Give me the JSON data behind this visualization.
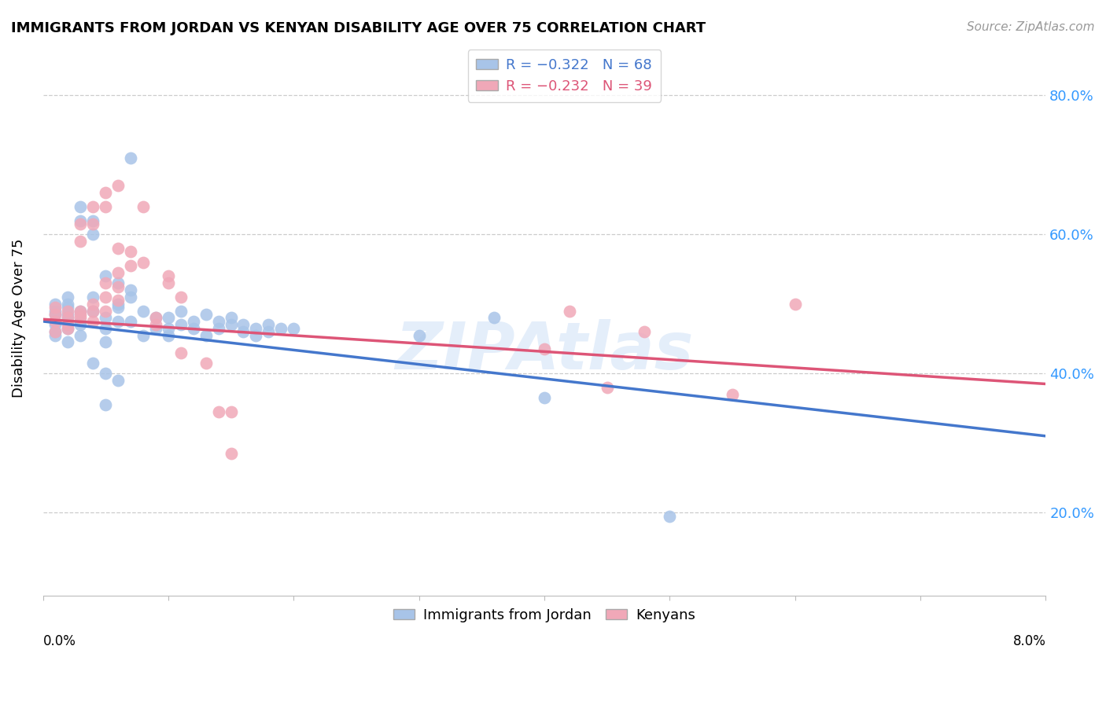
{
  "title": "IMMIGRANTS FROM JORDAN VS KENYAN DISABILITY AGE OVER 75 CORRELATION CHART",
  "source": "Source: ZipAtlas.com",
  "ylabel": "Disability Age Over 75",
  "xlim": [
    0.0,
    0.08
  ],
  "ylim": [
    0.08,
    0.88
  ],
  "yticks": [
    0.2,
    0.4,
    0.6,
    0.8
  ],
  "ytick_labels": [
    "20.0%",
    "40.0%",
    "60.0%",
    "80.0%"
  ],
  "jordan_color": "#a8c4e8",
  "kenyan_color": "#f0a8b8",
  "jordan_line_color": "#4477cc",
  "kenyan_line_color": "#dd5577",
  "watermark": "ZIPAtlas",
  "jordan_line_x": [
    0.0,
    0.08
  ],
  "jordan_line_y": [
    0.475,
    0.31
  ],
  "kenyan_line_x": [
    0.0,
    0.08
  ],
  "kenyan_line_y": [
    0.478,
    0.385
  ],
  "jordan_points": [
    [
      0.001,
      0.485
    ],
    [
      0.001,
      0.5
    ],
    [
      0.001,
      0.47
    ],
    [
      0.001,
      0.455
    ],
    [
      0.001,
      0.49
    ],
    [
      0.001,
      0.475
    ],
    [
      0.001,
      0.46
    ],
    [
      0.002,
      0.48
    ],
    [
      0.002,
      0.51
    ],
    [
      0.002,
      0.495
    ],
    [
      0.002,
      0.465
    ],
    [
      0.002,
      0.445
    ],
    [
      0.002,
      0.5
    ],
    [
      0.002,
      0.485
    ],
    [
      0.003,
      0.475
    ],
    [
      0.003,
      0.49
    ],
    [
      0.003,
      0.47
    ],
    [
      0.003,
      0.455
    ],
    [
      0.003,
      0.64
    ],
    [
      0.003,
      0.62
    ],
    [
      0.004,
      0.49
    ],
    [
      0.004,
      0.51
    ],
    [
      0.004,
      0.415
    ],
    [
      0.004,
      0.6
    ],
    [
      0.004,
      0.62
    ],
    [
      0.005,
      0.48
    ],
    [
      0.005,
      0.465
    ],
    [
      0.005,
      0.445
    ],
    [
      0.005,
      0.54
    ],
    [
      0.005,
      0.4
    ],
    [
      0.005,
      0.355
    ],
    [
      0.006,
      0.495
    ],
    [
      0.006,
      0.475
    ],
    [
      0.006,
      0.5
    ],
    [
      0.006,
      0.53
    ],
    [
      0.006,
      0.39
    ],
    [
      0.007,
      0.51
    ],
    [
      0.007,
      0.475
    ],
    [
      0.007,
      0.52
    ],
    [
      0.007,
      0.71
    ],
    [
      0.008,
      0.49
    ],
    [
      0.008,
      0.455
    ],
    [
      0.009,
      0.48
    ],
    [
      0.009,
      0.465
    ],
    [
      0.01,
      0.48
    ],
    [
      0.01,
      0.465
    ],
    [
      0.01,
      0.455
    ],
    [
      0.011,
      0.49
    ],
    [
      0.011,
      0.47
    ],
    [
      0.012,
      0.475
    ],
    [
      0.012,
      0.465
    ],
    [
      0.013,
      0.485
    ],
    [
      0.013,
      0.455
    ],
    [
      0.014,
      0.475
    ],
    [
      0.014,
      0.465
    ],
    [
      0.015,
      0.48
    ],
    [
      0.015,
      0.47
    ],
    [
      0.016,
      0.47
    ],
    [
      0.016,
      0.46
    ],
    [
      0.017,
      0.465
    ],
    [
      0.017,
      0.455
    ],
    [
      0.018,
      0.47
    ],
    [
      0.018,
      0.46
    ],
    [
      0.019,
      0.465
    ],
    [
      0.02,
      0.465
    ],
    [
      0.03,
      0.455
    ],
    [
      0.036,
      0.48
    ],
    [
      0.05,
      0.195
    ],
    [
      0.04,
      0.365
    ]
  ],
  "kenyan_points": [
    [
      0.001,
      0.485
    ],
    [
      0.001,
      0.495
    ],
    [
      0.001,
      0.475
    ],
    [
      0.001,
      0.46
    ],
    [
      0.002,
      0.49
    ],
    [
      0.002,
      0.48
    ],
    [
      0.002,
      0.47
    ],
    [
      0.002,
      0.465
    ],
    [
      0.003,
      0.485
    ],
    [
      0.003,
      0.615
    ],
    [
      0.003,
      0.59
    ],
    [
      0.003,
      0.49
    ],
    [
      0.003,
      0.48
    ],
    [
      0.004,
      0.5
    ],
    [
      0.004,
      0.49
    ],
    [
      0.004,
      0.475
    ],
    [
      0.004,
      0.64
    ],
    [
      0.004,
      0.615
    ],
    [
      0.005,
      0.53
    ],
    [
      0.005,
      0.51
    ],
    [
      0.005,
      0.49
    ],
    [
      0.005,
      0.66
    ],
    [
      0.005,
      0.64
    ],
    [
      0.006,
      0.545
    ],
    [
      0.006,
      0.525
    ],
    [
      0.006,
      0.505
    ],
    [
      0.006,
      0.67
    ],
    [
      0.006,
      0.58
    ],
    [
      0.007,
      0.575
    ],
    [
      0.007,
      0.555
    ],
    [
      0.008,
      0.56
    ],
    [
      0.008,
      0.64
    ],
    [
      0.009,
      0.48
    ],
    [
      0.009,
      0.47
    ],
    [
      0.01,
      0.53
    ],
    [
      0.01,
      0.54
    ],
    [
      0.011,
      0.51
    ],
    [
      0.011,
      0.43
    ],
    [
      0.013,
      0.415
    ],
    [
      0.014,
      0.345
    ],
    [
      0.015,
      0.345
    ],
    [
      0.015,
      0.285
    ],
    [
      0.04,
      0.435
    ],
    [
      0.042,
      0.49
    ],
    [
      0.045,
      0.38
    ],
    [
      0.048,
      0.46
    ],
    [
      0.06,
      0.5
    ],
    [
      0.055,
      0.37
    ]
  ]
}
